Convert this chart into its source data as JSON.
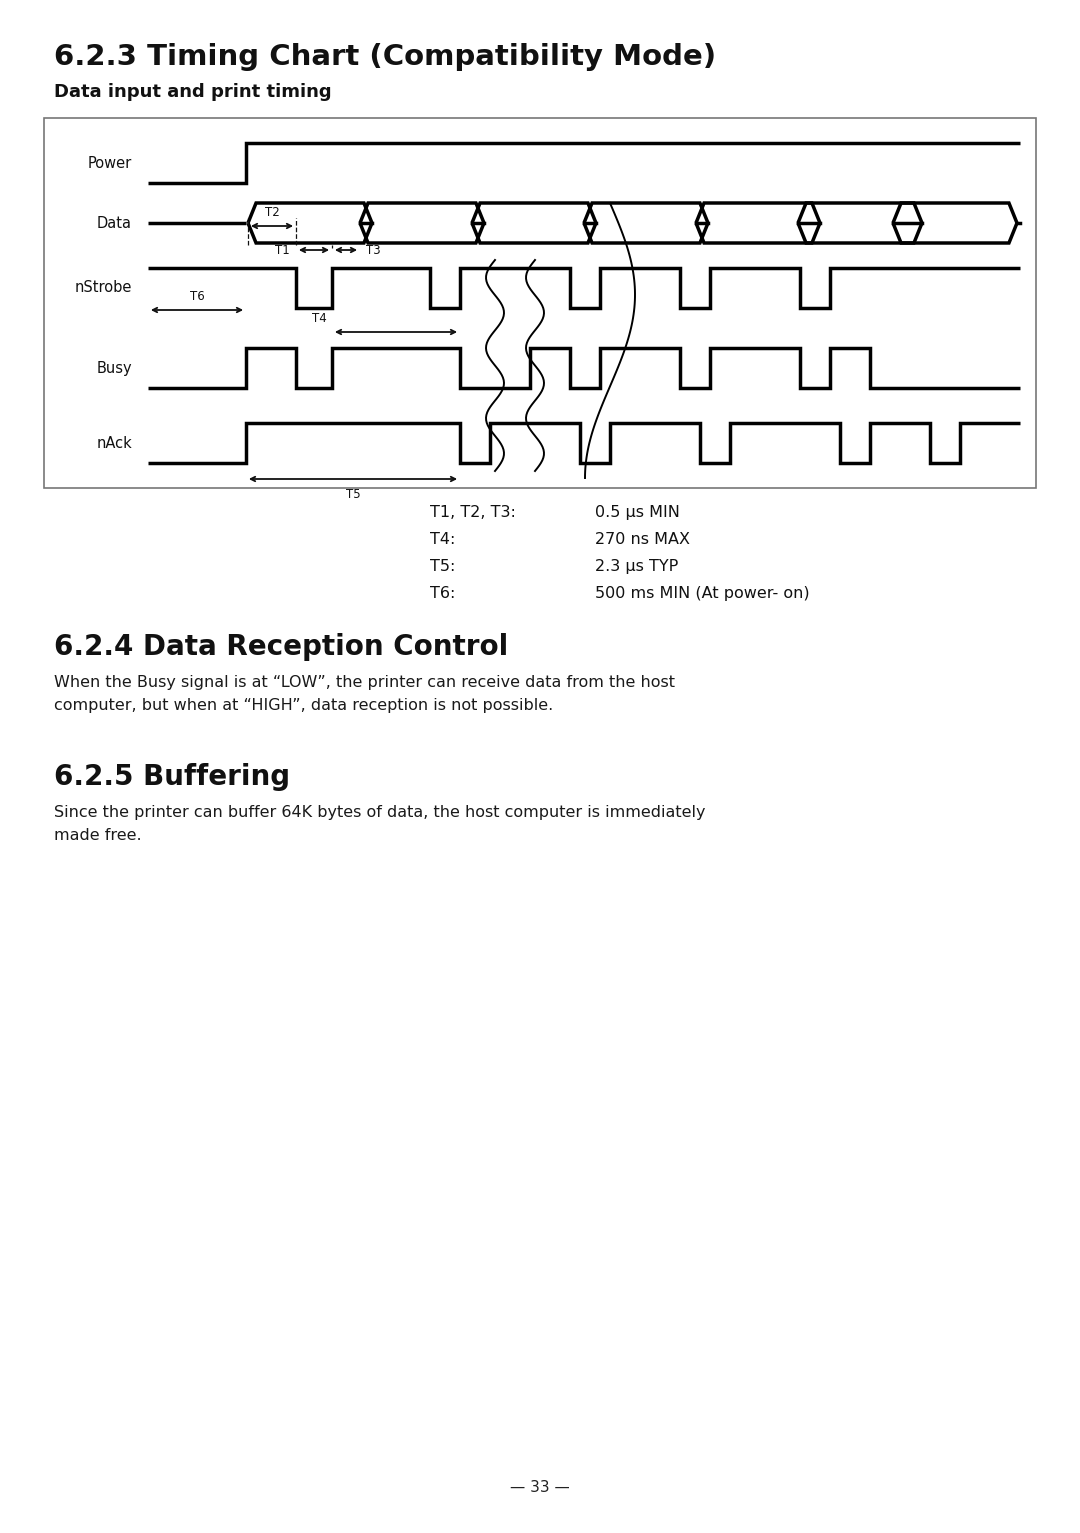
{
  "title": "6.2.3 Timing Chart (Compatibility Mode)",
  "subtitle": "Data input and print timing",
  "section_624_title": "6.2.4 Data Reception Control",
  "section_624_text": "When the Busy signal is at “LOW”, the printer can receive data from the host\ncomputer, but when at “HIGH”, data reception is not possible.",
  "section_625_title": "6.2.5 Buffering",
  "section_625_text": "Since the printer can buffer 64K bytes of data, the host computer is immediately\nmade free.",
  "timing_labels": [
    {
      "label": "T1, T2, T3:",
      "value": "0.5 μs MIN"
    },
    {
      "label": "T4:",
      "value": "270 ns MAX"
    },
    {
      "label": "T5:",
      "value": "2.3 μs TYP"
    },
    {
      "label": "T6:",
      "value": "500 ms MIN (At power- on)"
    }
  ],
  "page_number": "— 33 —",
  "bg_color": "#ffffff",
  "signal_color": "#000000",
  "lw": 2.5
}
